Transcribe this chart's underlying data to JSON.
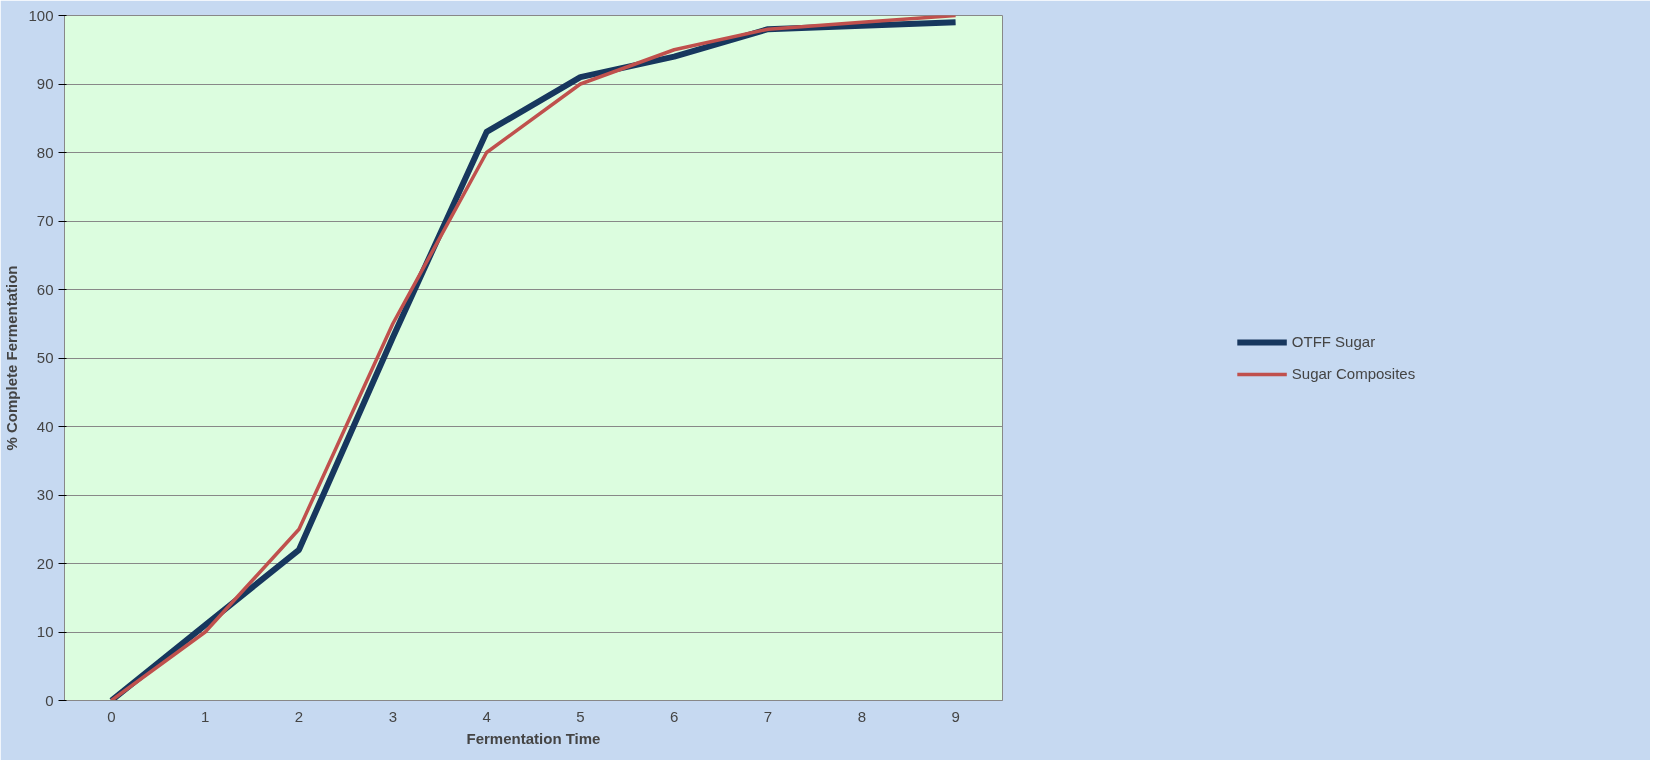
{
  "chart_data": {
    "type": "line",
    "xlabel": "Fermentation Time",
    "ylabel": "% Complete Fermentation",
    "categories": [
      "0",
      "1",
      "2",
      "3",
      "4",
      "5",
      "6",
      "7",
      "8",
      "9"
    ],
    "series": [
      {
        "name": "OTFF Sugar",
        "color": "#17375e",
        "values": [
          0,
          11,
          22,
          53,
          83,
          91,
          94,
          98,
          98.5,
          99
        ]
      },
      {
        "name": "Sugar Composites",
        "color": "#c0504d",
        "values": [
          0,
          10,
          25,
          55,
          80,
          90,
          95,
          98,
          99,
          100
        ]
      }
    ],
    "ylim": [
      0,
      100
    ],
    "yticks": [
      0,
      10,
      20,
      30,
      40,
      50,
      60,
      70,
      80,
      90,
      100
    ],
    "grid": "y",
    "legend": "right",
    "marker": "none",
    "line_style": "solid"
  }
}
